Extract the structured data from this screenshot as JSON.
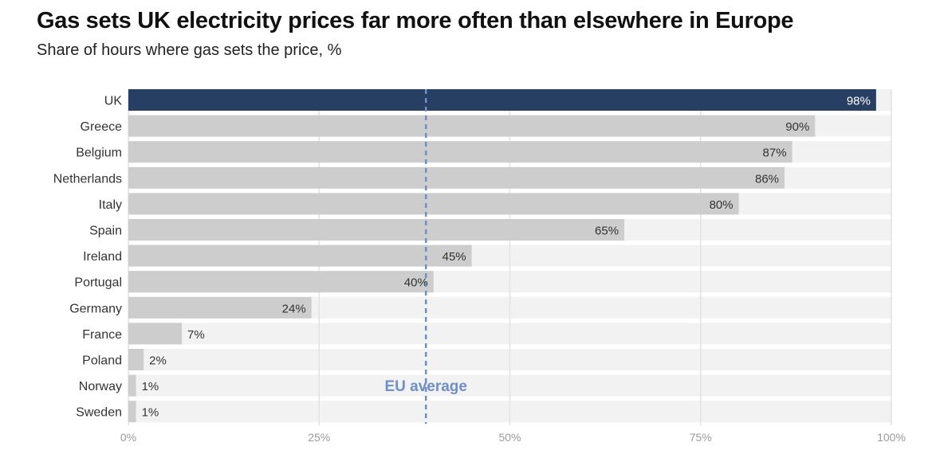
{
  "header": {
    "title": "Gas sets UK electricity prices far more often than elsewhere in Europe",
    "subtitle": "Share of hours where gas sets the price, %"
  },
  "chart_data": {
    "type": "bar",
    "orientation": "horizontal",
    "title": "Gas sets UK electricity prices far more often than elsewhere in Europe",
    "subtitle": "Share of hours where gas sets the price, %",
    "categories": [
      "UK",
      "Greece",
      "Belgium",
      "Netherlands",
      "Italy",
      "Spain",
      "Ireland",
      "Portugal",
      "Germany",
      "France",
      "Poland",
      "Norway",
      "Sweden"
    ],
    "values": [
      98,
      90,
      87,
      86,
      80,
      65,
      45,
      40,
      24,
      7,
      2,
      1,
      1
    ],
    "value_labels": [
      "98%",
      "90%",
      "87%",
      "86%",
      "80%",
      "65%",
      "45%",
      "40%",
      "24%",
      "7%",
      "2%",
      "1%",
      "1%"
    ],
    "highlight": "UK",
    "xlim": [
      0,
      100
    ],
    "xticks": [
      0,
      25,
      50,
      75,
      100
    ],
    "xtick_labels": [
      "0%",
      "25%",
      "50%",
      "75%",
      "100%"
    ],
    "reference_line": {
      "label": "EU average",
      "value": 39
    },
    "colors": {
      "highlight": "#263F63",
      "bar": "#CDCDCD",
      "track": "#F2F2F2",
      "grid": "#E2E2E2",
      "reference": "#6E8FC7",
      "tick_label": "#9A9A9A",
      "category_label": "#333333"
    }
  }
}
